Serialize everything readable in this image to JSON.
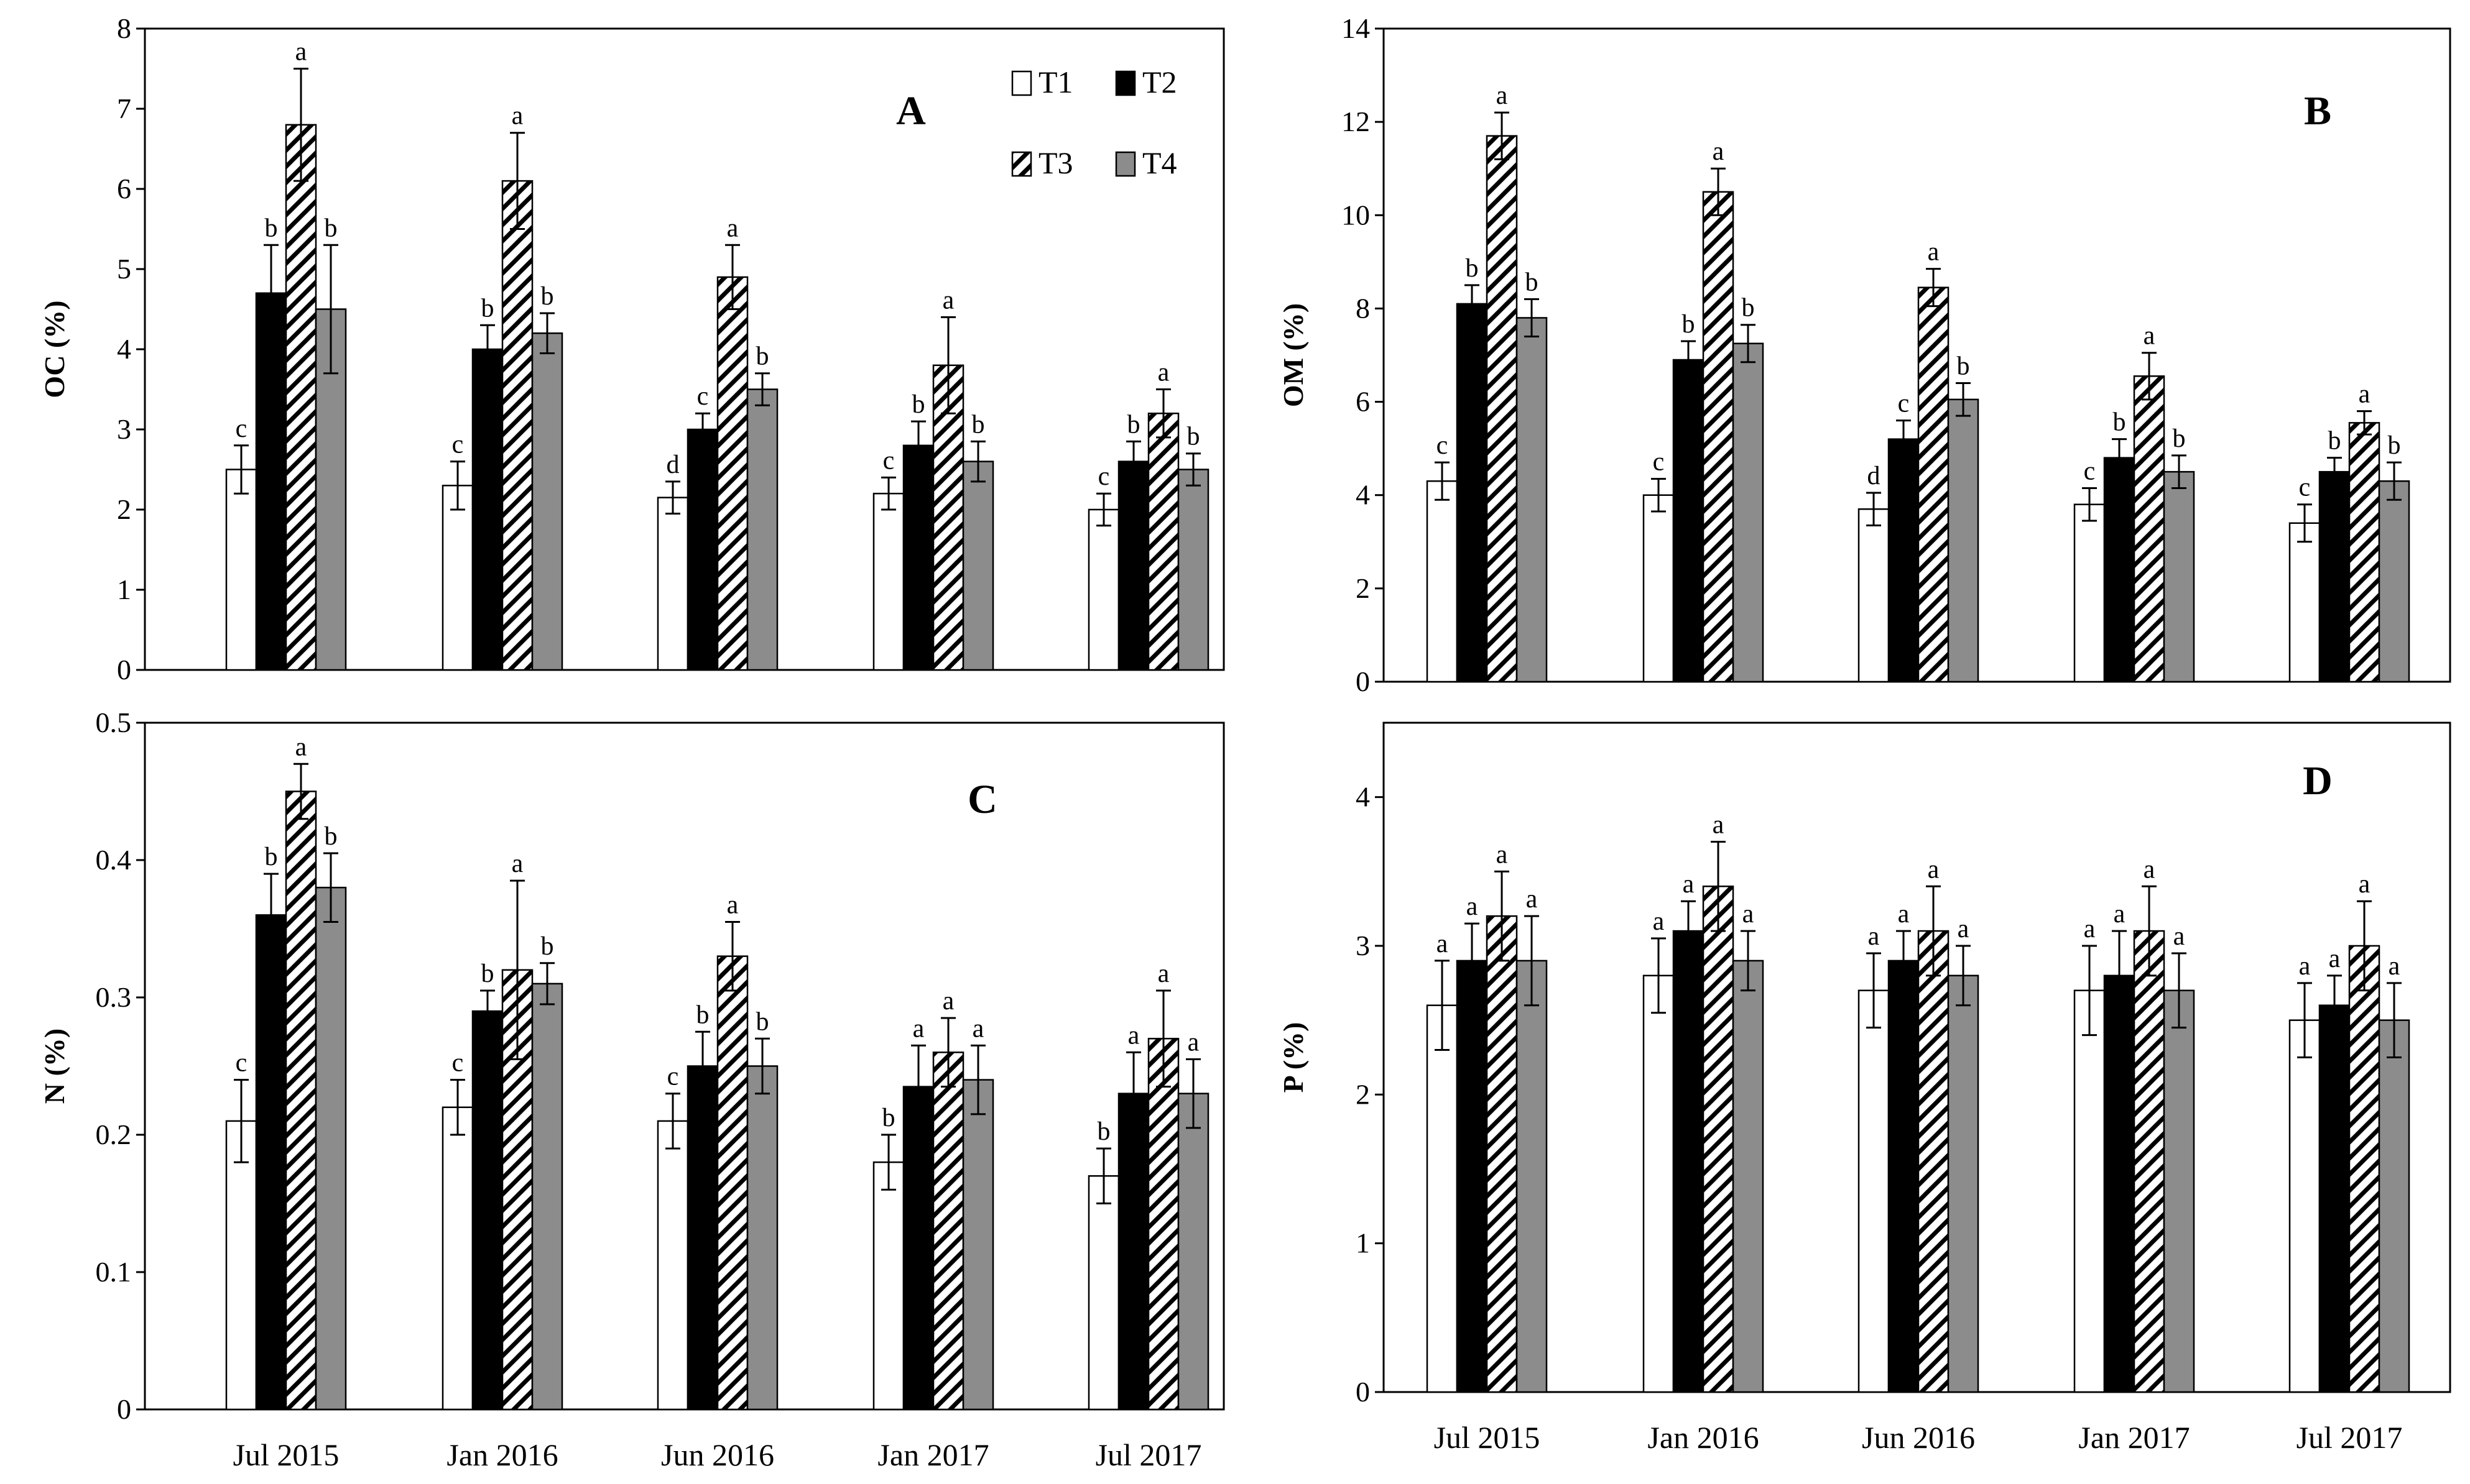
{
  "chart_data": {
    "categories": [
      "Jul 2015",
      "Jan 2016",
      "Jun 2016",
      "Jan 2017",
      "Jul 2017"
    ],
    "series_names": [
      "T1",
      "T2",
      "T3",
      "T4"
    ],
    "series_styles": {
      "T1": {
        "fill": "#ffffff",
        "pattern": "none"
      },
      "T2": {
        "fill": "#000000",
        "pattern": "none"
      },
      "T3": {
        "fill": "#ffffff",
        "pattern": "diagonal-hatch"
      },
      "T4": {
        "fill": "#8c8c8c",
        "pattern": "none"
      }
    },
    "panels": [
      {
        "id": "A",
        "panel_label": "A",
        "type": "bar",
        "ylabel": "OC (%)",
        "ylim": [
          0,
          8
        ],
        "yticks": [
          0,
          1,
          2,
          3,
          4,
          5,
          6,
          7,
          8
        ],
        "ytick_labels": [
          "0",
          "1",
          "2",
          "3",
          "4",
          "5",
          "6",
          "7",
          "8"
        ],
        "legend": "top-right",
        "series": [
          {
            "name": "T1",
            "values": [
              2.5,
              2.3,
              2.15,
              2.2,
              2.0
            ],
            "errors": [
              0.3,
              0.3,
              0.2,
              0.2,
              0.2
            ],
            "letters": [
              "c",
              "c",
              "d",
              "c",
              "c"
            ]
          },
          {
            "name": "T2",
            "values": [
              4.7,
              4.0,
              3.0,
              2.8,
              2.6
            ],
            "errors": [
              0.6,
              0.3,
              0.2,
              0.3,
              0.25
            ],
            "letters": [
              "b",
              "b",
              "c",
              "b",
              "b"
            ]
          },
          {
            "name": "T3",
            "values": [
              6.8,
              6.1,
              4.9,
              3.8,
              3.2
            ],
            "errors": [
              0.7,
              0.6,
              0.4,
              0.6,
              0.3
            ],
            "letters": [
              "a",
              "a",
              "a",
              "a",
              "a"
            ]
          },
          {
            "name": "T4",
            "values": [
              4.5,
              4.2,
              3.5,
              2.6,
              2.5
            ],
            "errors": [
              0.8,
              0.25,
              0.2,
              0.25,
              0.2
            ],
            "letters": [
              "b",
              "b",
              "b",
              "b",
              "b"
            ]
          }
        ]
      },
      {
        "id": "B",
        "panel_label": "B",
        "type": "bar",
        "ylabel": "OM (%)",
        "ylim": [
          0,
          14
        ],
        "yticks": [
          0,
          2,
          4,
          6,
          8,
          10,
          12,
          14
        ],
        "ytick_labels": [
          "0",
          "2",
          "4",
          "6",
          "8",
          "10",
          "12",
          "14"
        ],
        "series": [
          {
            "name": "T1",
            "values": [
              4.3,
              4.0,
              3.7,
              3.8,
              3.4
            ],
            "errors": [
              0.4,
              0.35,
              0.35,
              0.35,
              0.4
            ],
            "letters": [
              "c",
              "c",
              "d",
              "c",
              "c"
            ]
          },
          {
            "name": "T2",
            "values": [
              8.1,
              6.9,
              5.2,
              4.8,
              4.5
            ],
            "errors": [
              0.4,
              0.4,
              0.4,
              0.4,
              0.3
            ],
            "letters": [
              "b",
              "b",
              "c",
              "b",
              "b"
            ]
          },
          {
            "name": "T3",
            "values": [
              11.7,
              10.5,
              8.45,
              6.55,
              5.55
            ],
            "errors": [
              0.5,
              0.5,
              0.4,
              0.5,
              0.25
            ],
            "letters": [
              "a",
              "a",
              "a",
              "a",
              "a"
            ]
          },
          {
            "name": "T4",
            "values": [
              7.8,
              7.25,
              6.05,
              4.5,
              4.3
            ],
            "errors": [
              0.4,
              0.4,
              0.35,
              0.35,
              0.4
            ],
            "letters": [
              "b",
              "b",
              "b",
              "b",
              "b"
            ]
          }
        ]
      },
      {
        "id": "C",
        "panel_label": "C",
        "type": "bar",
        "ylabel": "N (%)",
        "ylim": [
          0,
          0.5
        ],
        "yticks": [
          0,
          0.1,
          0.2,
          0.3,
          0.4,
          0.5
        ],
        "ytick_labels": [
          "0",
          "0.1",
          "0.2",
          "0.3",
          "0.4",
          "0.5"
        ],
        "series": [
          {
            "name": "T1",
            "values": [
              0.21,
              0.22,
              0.21,
              0.18,
              0.17
            ],
            "errors": [
              0.03,
              0.02,
              0.02,
              0.02,
              0.02
            ],
            "letters": [
              "c",
              "c",
              "c",
              "b",
              "b"
            ]
          },
          {
            "name": "T2",
            "values": [
              0.36,
              0.29,
              0.25,
              0.235,
              0.23
            ],
            "errors": [
              0.03,
              0.015,
              0.025,
              0.03,
              0.03
            ],
            "letters": [
              "b",
              "b",
              "b",
              "a",
              "a"
            ]
          },
          {
            "name": "T3",
            "values": [
              0.45,
              0.32,
              0.33,
              0.26,
              0.27
            ],
            "errors": [
              0.02,
              0.065,
              0.025,
              0.025,
              0.035
            ],
            "letters": [
              "a",
              "a",
              "a",
              "a",
              "a"
            ]
          },
          {
            "name": "T4",
            "values": [
              0.38,
              0.31,
              0.25,
              0.24,
              0.23
            ],
            "errors": [
              0.025,
              0.015,
              0.02,
              0.025,
              0.025
            ],
            "letters": [
              "b",
              "b",
              "b",
              "a",
              "a"
            ]
          }
        ]
      },
      {
        "id": "D",
        "panel_label": "D",
        "type": "bar",
        "ylabel": "P (%)",
        "ylim": [
          0,
          4.5
        ],
        "yticks": [
          0,
          1,
          2,
          3,
          4
        ],
        "ytick_labels": [
          "0",
          "1",
          "2",
          "3",
          "4"
        ],
        "series": [
          {
            "name": "T1",
            "values": [
              2.6,
              2.8,
              2.7,
              2.7,
              2.5
            ],
            "errors": [
              0.3,
              0.25,
              0.25,
              0.3,
              0.25
            ],
            "letters": [
              "a",
              "a",
              "a",
              "a",
              "a"
            ]
          },
          {
            "name": "T2",
            "values": [
              2.9,
              3.1,
              2.9,
              2.8,
              2.6
            ],
            "errors": [
              0.25,
              0.2,
              0.2,
              0.3,
              0.2
            ],
            "letters": [
              "a",
              "a",
              "a",
              "a",
              "a"
            ]
          },
          {
            "name": "T3",
            "values": [
              3.2,
              3.4,
              3.1,
              3.1,
              3.0
            ],
            "errors": [
              0.3,
              0.3,
              0.3,
              0.3,
              0.3
            ],
            "letters": [
              "a",
              "a",
              "a",
              "a",
              "a"
            ]
          },
          {
            "name": "T4",
            "values": [
              2.9,
              2.9,
              2.8,
              2.7,
              2.5
            ],
            "errors": [
              0.3,
              0.2,
              0.2,
              0.25,
              0.25
            ],
            "letters": [
              "a",
              "a",
              "a",
              "a",
              "a"
            ]
          }
        ]
      }
    ]
  }
}
